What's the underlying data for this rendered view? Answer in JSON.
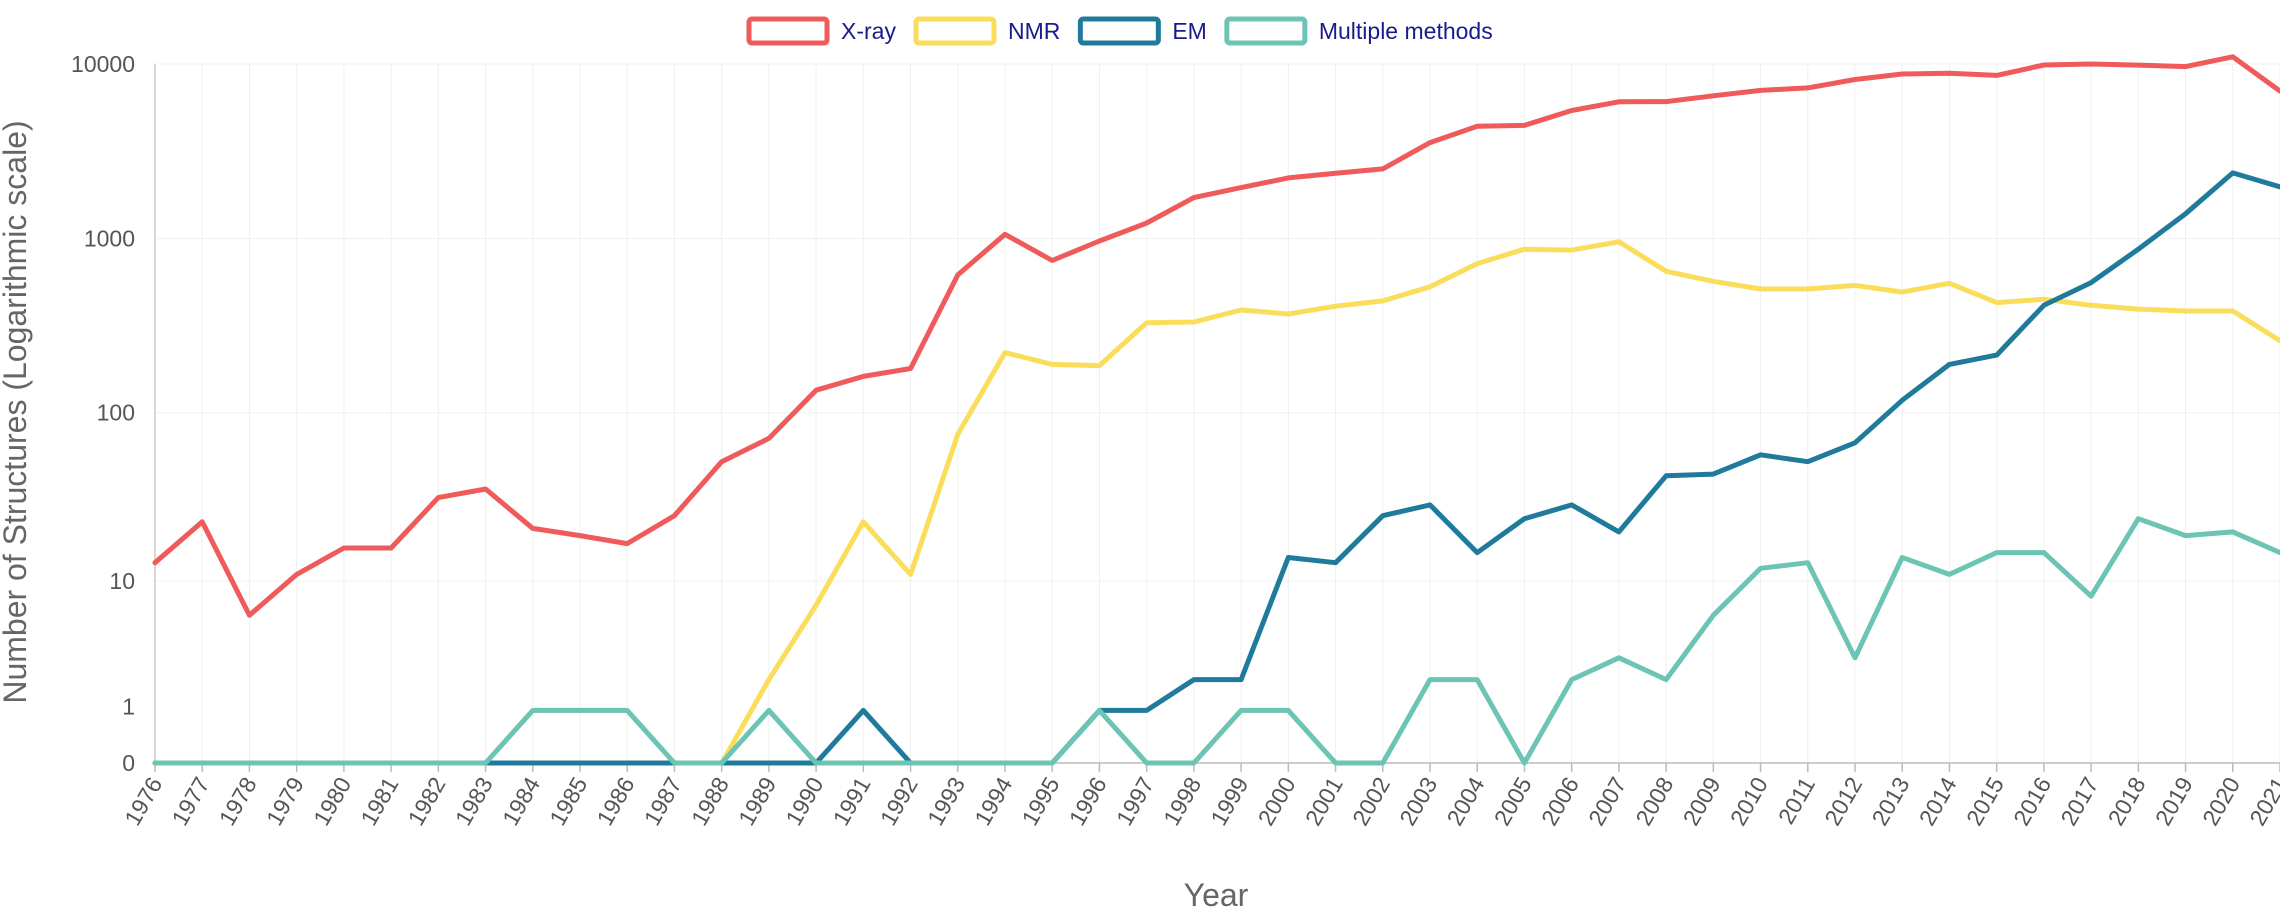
{
  "chart_data": {
    "type": "line",
    "xlabel": "Year",
    "ylabel": "Number of Structures (Logarithmic scale)",
    "y_scale": "log1p",
    "ylim": [
      0,
      10000
    ],
    "y_ticks": [
      0,
      1,
      10,
      100,
      1000,
      10000
    ],
    "grid": true,
    "legend_position": "top-center",
    "categories": [
      "1976",
      "1977",
      "1978",
      "1979",
      "1980",
      "1981",
      "1982",
      "1983",
      "1984",
      "1985",
      "1986",
      "1987",
      "1988",
      "1989",
      "1990",
      "1991",
      "1992",
      "1993",
      "1994",
      "1995",
      "1996",
      "1997",
      "1998",
      "1999",
      "2000",
      "2001",
      "2002",
      "2003",
      "2004",
      "2005",
      "2006",
      "2007",
      "2008",
      "2009",
      "2010",
      "2011",
      "2012",
      "2013",
      "2014",
      "2015",
      "2016",
      "2017",
      "2018",
      "2019",
      "2020",
      "2021"
    ],
    "series": [
      {
        "name": "X-ray",
        "color": "#ef5b5b",
        "values": [
          13,
          23,
          6,
          11,
          16,
          16,
          32,
          36,
          21,
          19,
          17,
          25,
          52,
          71,
          135,
          162,
          180,
          620,
          1060,
          750,
          970,
          1230,
          1720,
          1960,
          2230,
          2370,
          2510,
          3550,
          4400,
          4450,
          5420,
          6080,
          6090,
          6580,
          7060,
          7300,
          8150,
          8760,
          8860,
          8610,
          9870,
          10000,
          9850,
          9660,
          11000,
          7000
        ]
      },
      {
        "name": "NMR",
        "color": "#fbdd5c",
        "values": [
          0,
          0,
          0,
          0,
          0,
          0,
          0,
          0,
          0,
          0,
          0,
          0,
          0,
          2,
          7,
          23,
          11,
          75,
          222,
          190,
          187,
          330,
          333,
          390,
          370,
          410,
          440,
          530,
          720,
          870,
          860,
          960,
          650,
          570,
          515,
          515,
          540,
          495,
          555,
          430,
          450,
          415,
          395,
          385,
          385,
          260
        ]
      },
      {
        "name": "EM",
        "color": "#1f7a9c",
        "values": [
          0,
          0,
          0,
          0,
          0,
          0,
          0,
          0,
          0,
          0,
          0,
          0,
          0,
          0,
          0,
          1,
          0,
          0,
          0,
          0,
          1,
          1,
          2,
          2,
          14,
          13,
          25,
          29,
          15,
          24,
          29,
          20,
          43,
          44,
          57,
          52,
          67,
          118,
          190,
          215,
          415,
          560,
          870,
          1390,
          2380,
          1980
        ]
      },
      {
        "name": "Multiple methods",
        "color": "#6cc4b5",
        "values": [
          0,
          0,
          0,
          0,
          0,
          0,
          0,
          0,
          1,
          1,
          1,
          0,
          0,
          1,
          0,
          0,
          0,
          0,
          0,
          0,
          1,
          0,
          0,
          1,
          1,
          0,
          0,
          2,
          2,
          0,
          2,
          3,
          2,
          6,
          12,
          13,
          3,
          14,
          11,
          15,
          15,
          8,
          24,
          19,
          20,
          15
        ]
      }
    ]
  }
}
